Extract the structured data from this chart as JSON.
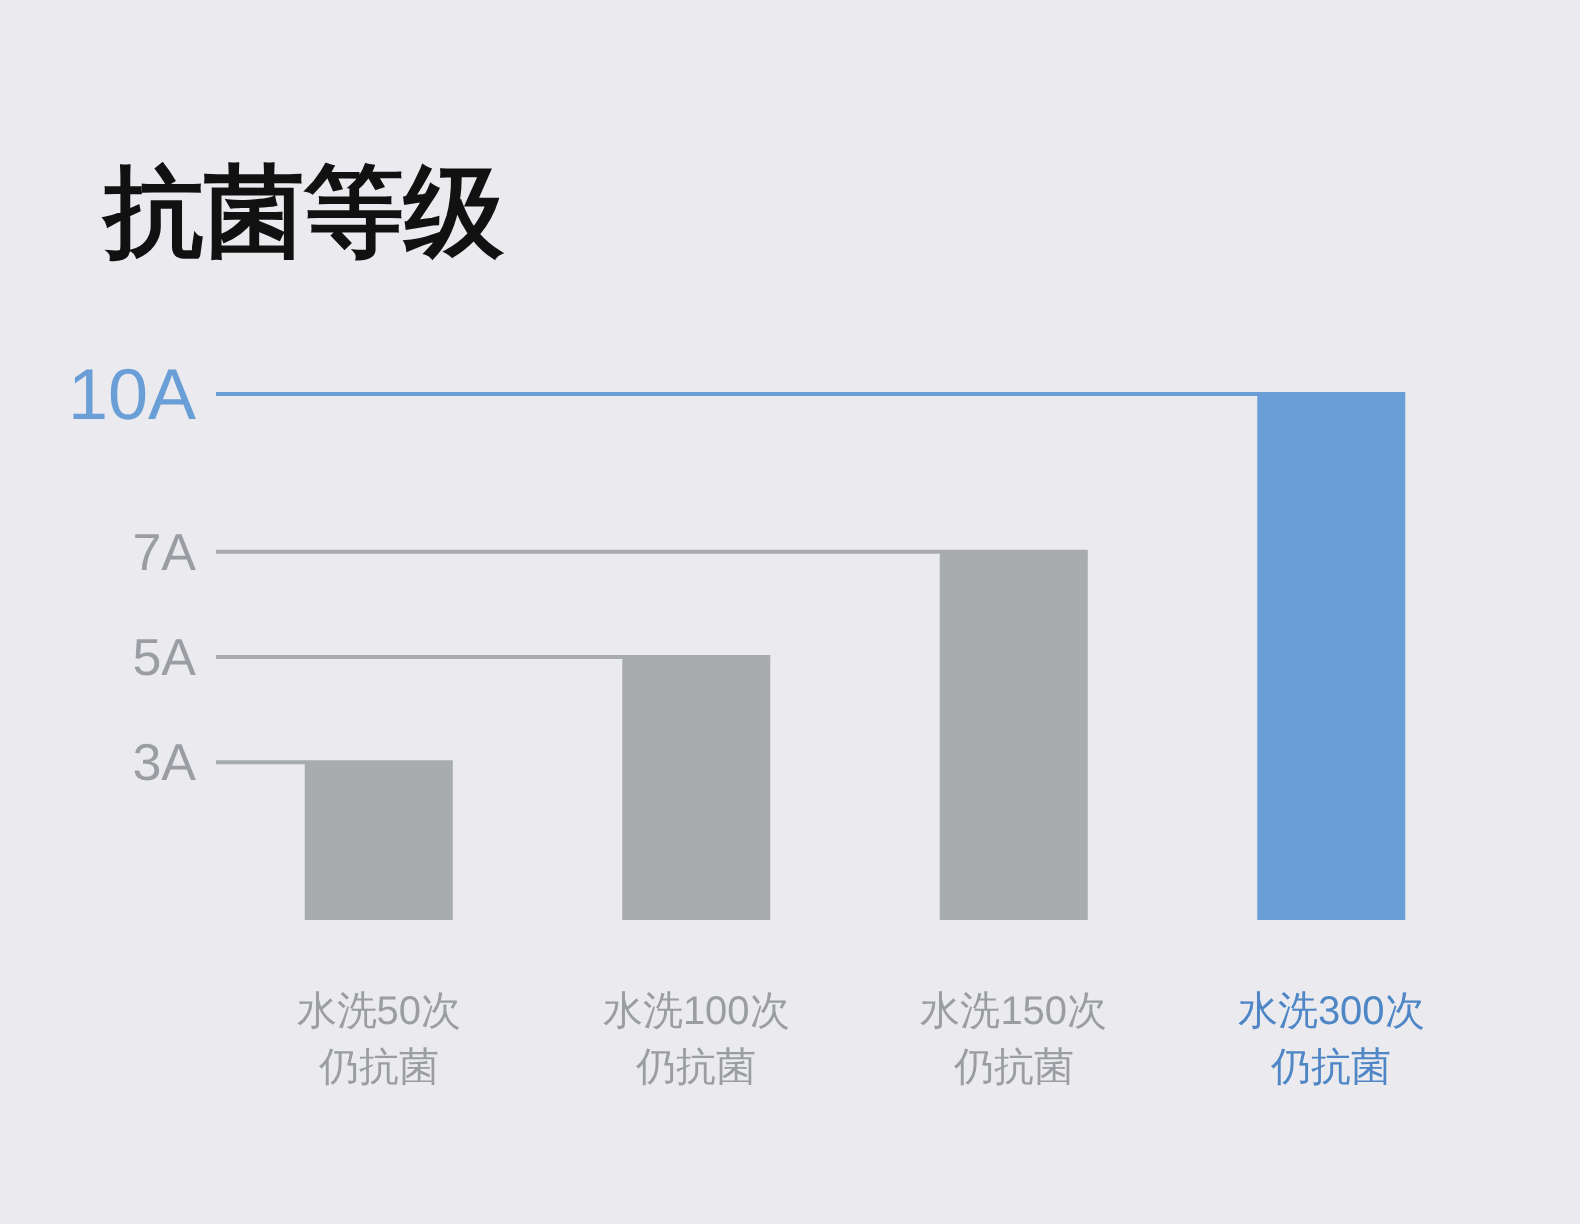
{
  "chart_data": {
    "type": "bar",
    "title": "抗菌等级",
    "categories": [
      "水洗50次仍抗菌",
      "水洗100次仍抗菌",
      "水洗150次仍抗菌",
      "水洗300次仍抗菌"
    ],
    "values": [
      3,
      5,
      7,
      10
    ],
    "colors": [
      "#a9acae",
      "#a9acae",
      "#a9acae",
      "#6a9ed6"
    ],
    "ylim": [
      0,
      10
    ],
    "yticks": [
      {
        "value": 3,
        "label": "3A"
      },
      {
        "value": 5,
        "label": "5A"
      },
      {
        "value": 7,
        "label": "7A"
      },
      {
        "value": 10,
        "label": "10A"
      }
    ],
    "ref_lines": [
      {
        "axis": "y",
        "value": 3,
        "color": "#a9acae"
      },
      {
        "axis": "y",
        "value": 5,
        "color": "#a9acae"
      },
      {
        "axis": "y",
        "value": 7,
        "color": "#a9acae"
      },
      {
        "axis": "y",
        "value": 10,
        "color": "#6a9ed6"
      }
    ]
  }
}
